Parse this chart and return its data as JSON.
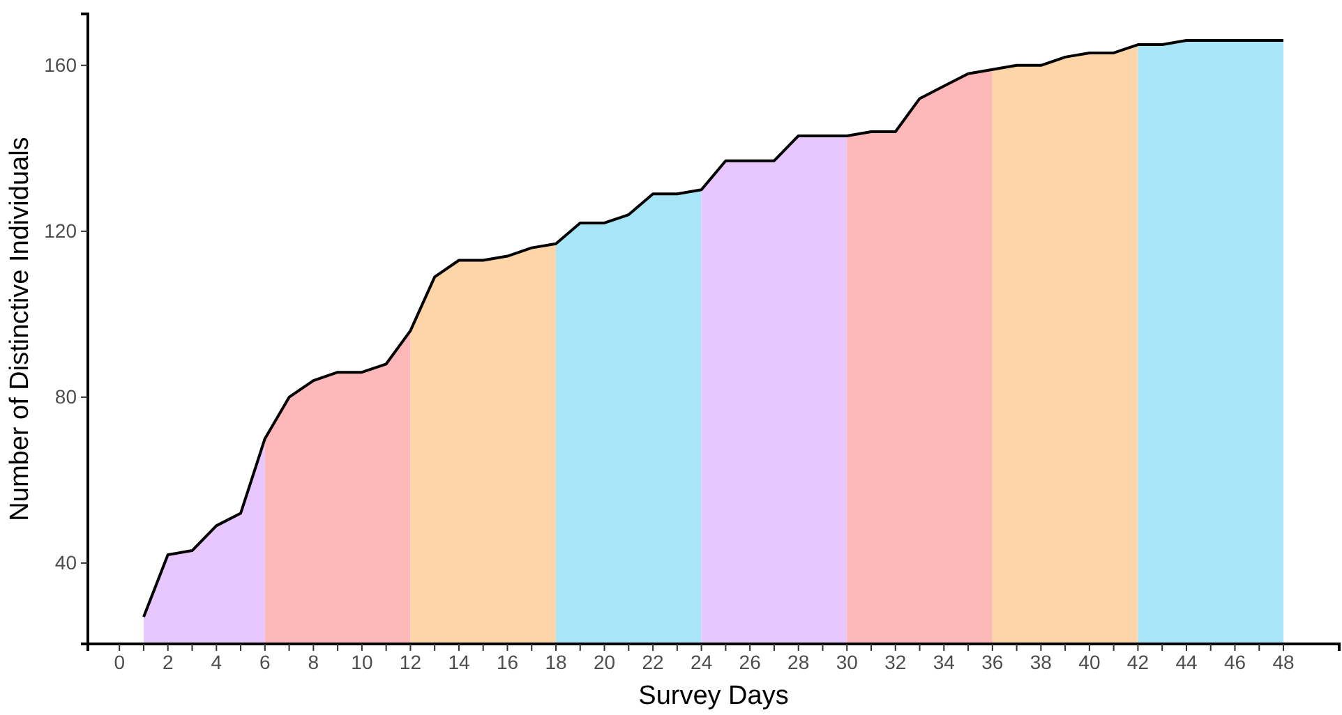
{
  "chart_data": {
    "type": "area",
    "xlabel": "Survey Days",
    "ylabel": "Number of Distinctive Individuals",
    "xlim": [
      -1.3,
      50.3
    ],
    "ylim": [
      20.5,
      172.4
    ],
    "xticks": [
      0,
      {
        "value": 1,
        "label": null
      },
      2,
      {
        "value": 3,
        "label": null
      },
      4,
      {
        "value": 5,
        "label": null
      },
      6,
      {
        "value": 7,
        "label": null
      },
      8,
      {
        "value": 9,
        "label": null
      },
      10,
      {
        "value": 11,
        "label": null
      },
      12,
      {
        "value": 13,
        "label": null
      },
      14,
      {
        "value": 15,
        "label": null
      },
      16,
      {
        "value": 17,
        "label": null
      },
      18,
      {
        "value": 19,
        "label": null
      },
      20,
      {
        "value": 21,
        "label": null
      },
      22,
      {
        "value": 23,
        "label": null
      },
      24,
      {
        "value": 25,
        "label": null
      },
      26,
      {
        "value": 27,
        "label": null
      },
      28,
      {
        "value": 29,
        "label": null
      },
      30,
      {
        "value": 31,
        "label": null
      },
      32,
      {
        "value": 33,
        "label": null
      },
      34,
      {
        "value": 35,
        "label": null
      },
      36,
      {
        "value": 37,
        "label": null
      },
      38,
      {
        "value": 39,
        "label": null
      },
      40,
      {
        "value": 41,
        "label": null
      },
      42,
      {
        "value": 43,
        "label": null
      },
      44,
      {
        "value": 45,
        "label": null
      },
      46,
      {
        "value": 47,
        "label": null
      },
      48
    ],
    "yticks": [
      40,
      80,
      120,
      160
    ],
    "grid": false,
    "series": [
      {
        "color": "#e8c6fe",
        "x": [
          1,
          2,
          3,
          4,
          5,
          6
        ],
        "values": [
          27,
          42,
          43,
          49,
          52,
          70
        ]
      },
      {
        "color": "#fdb8b9",
        "x": [
          6,
          7,
          8,
          9,
          10,
          11,
          12
        ],
        "values": [
          70,
          80,
          84,
          86,
          86,
          88,
          96
        ]
      },
      {
        "color": "#fdd5a8",
        "x": [
          12,
          13,
          14,
          15,
          16,
          17,
          18
        ],
        "values": [
          96,
          109,
          113,
          113,
          114,
          116,
          117
        ]
      },
      {
        "color": "#a8e5f6",
        "x": [
          18,
          19,
          20,
          21,
          22,
          23,
          24
        ],
        "values": [
          117,
          122,
          122,
          124,
          129,
          129,
          130
        ]
      },
      {
        "color": "#e8c6fe",
        "x": [
          24,
          25,
          26,
          27,
          28,
          29,
          30
        ],
        "values": [
          130,
          137,
          137,
          137,
          143,
          143,
          143
        ]
      },
      {
        "color": "#fdb8b9",
        "x": [
          30,
          31,
          32,
          33,
          34,
          35,
          36
        ],
        "values": [
          143,
          144,
          144,
          152,
          155,
          158,
          159
        ]
      },
      {
        "color": "#fdd5a8",
        "x": [
          36,
          37,
          38,
          39,
          40,
          41,
          42
        ],
        "values": [
          159,
          160,
          160,
          162,
          163,
          163,
          165
        ]
      },
      {
        "color": "#a8e5f6",
        "x": [
          42,
          43,
          44,
          45,
          46,
          47,
          48
        ],
        "values": [
          165,
          165,
          166,
          166,
          166,
          166,
          166
        ]
      },
      {
        "type": "line",
        "color": "#000000",
        "x": [
          1,
          2,
          3,
          4,
          5,
          6,
          7,
          8,
          9,
          10,
          11,
          12,
          13,
          14,
          15,
          16,
          17,
          18,
          19,
          20,
          21,
          22,
          23,
          24,
          25,
          26,
          27,
          28,
          29,
          30,
          31,
          32,
          33,
          34,
          35,
          36,
          37,
          38,
          39,
          40,
          41,
          42,
          43,
          44,
          45,
          46,
          47,
          48
        ],
        "values": [
          27,
          42,
          43,
          49,
          52,
          70,
          80,
          84,
          86,
          86,
          88,
          96,
          109,
          113,
          113,
          114,
          116,
          117,
          122,
          122,
          124,
          129,
          129,
          130,
          137,
          137,
          137,
          143,
          143,
          143,
          144,
          144,
          152,
          155,
          158,
          159,
          160,
          160,
          162,
          163,
          163,
          165,
          165,
          166,
          166,
          166,
          166,
          166
        ]
      }
    ]
  }
}
